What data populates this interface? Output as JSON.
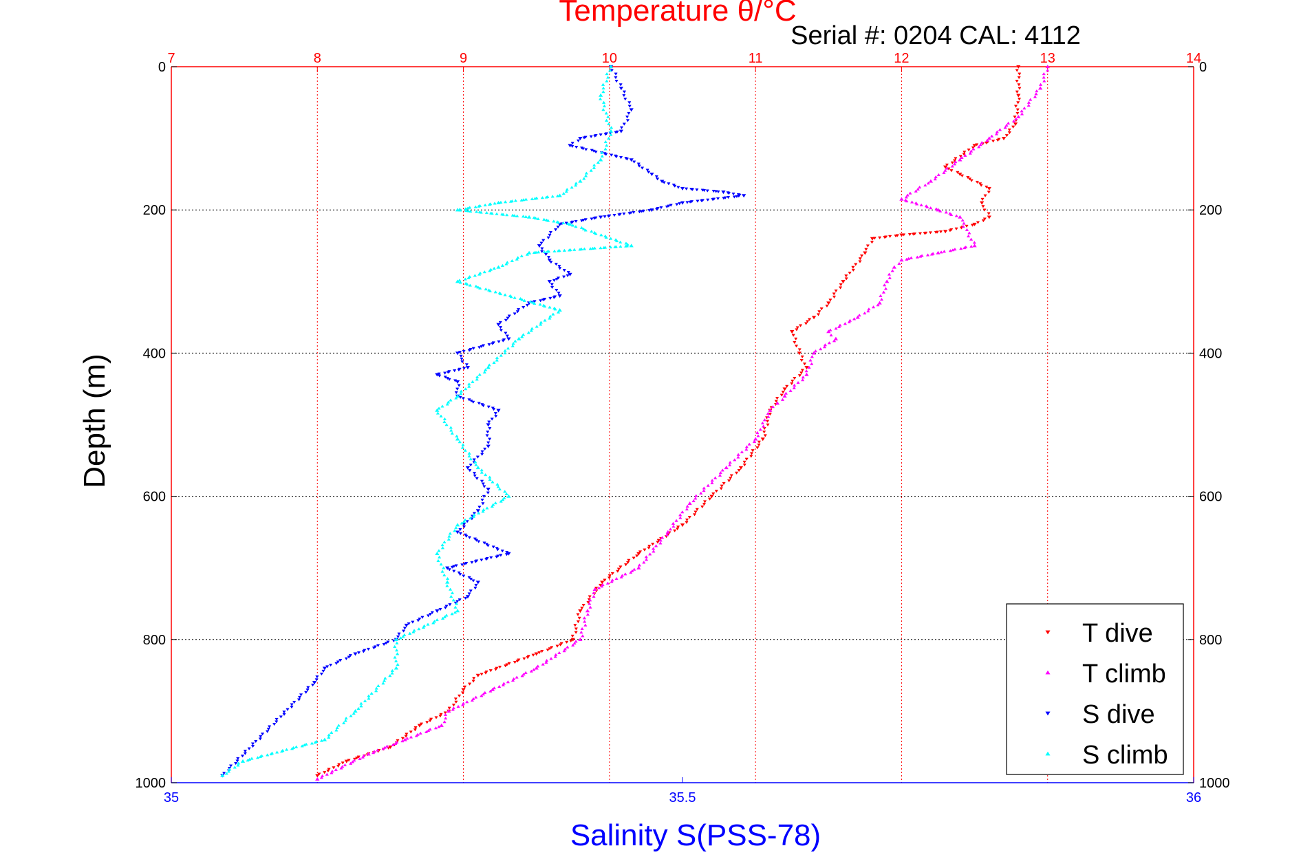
{
  "chart_data": {
    "type": "scatter",
    "title": "Temperature θ/°C",
    "subtitle": "Serial #: 0204  CAL: 4112",
    "ylabel": "Depth (m)",
    "xlabel": "Salinity S(PSS-78)",
    "grid": true,
    "legend_position": "bottom-right",
    "y_axis": {
      "lim": [
        0,
        1000
      ],
      "reversed": true,
      "ticks": [
        0,
        200,
        400,
        600,
        800,
        1000
      ]
    },
    "x_top": {
      "label": "Temperature θ/°C",
      "lim": [
        7,
        14
      ],
      "ticks": [
        7,
        8,
        9,
        10,
        11,
        12,
        13,
        14
      ],
      "color": "#ff0000"
    },
    "x_bottom": {
      "label": "Salinity S(PSS-78)",
      "lim": [
        35,
        36
      ],
      "ticks": [
        35,
        35.5,
        36
      ],
      "color": "#0000ff"
    },
    "series": [
      {
        "name": "T dive",
        "axis": "top",
        "color": "#ff0000",
        "marker": "triangle-down",
        "x": [
          12.8,
          12.8,
          12.78,
          12.7,
          12.5,
          12.3,
          12.4,
          12.6,
          12.55,
          12.6,
          12.5,
          12.3,
          12.0,
          11.8,
          11.75,
          11.6,
          11.5,
          11.4,
          11.25,
          11.3,
          11.35,
          11.2,
          11.1,
          11.05,
          10.9,
          10.7,
          10.5,
          10.2,
          9.95,
          9.8,
          9.75,
          9.5,
          9.1,
          9.0,
          8.9,
          8.7,
          8.5,
          8.2,
          8.0
        ],
        "y": [
          0,
          40,
          80,
          100,
          110,
          140,
          150,
          170,
          190,
          210,
          220,
          230,
          235,
          240,
          260,
          300,
          330,
          350,
          370,
          400,
          420,
          450,
          480,
          520,
          560,
          600,
          640,
          680,
          720,
          760,
          800,
          820,
          850,
          870,
          900,
          920,
          950,
          970,
          990
        ]
      },
      {
        "name": "T climb",
        "axis": "top",
        "color": "#ff00ff",
        "marker": "triangle-up",
        "x": [
          13.0,
          12.95,
          12.8,
          12.6,
          12.4,
          12.2,
          12.0,
          12.25,
          12.4,
          12.5,
          12.25,
          12.0,
          11.95,
          11.9,
          11.85,
          11.7,
          11.5,
          11.55,
          11.4,
          11.35,
          11.2,
          11.15,
          11.1,
          11.0,
          10.8,
          10.55,
          10.4,
          10.2,
          9.9,
          9.85,
          9.8,
          9.5,
          9.2,
          8.9,
          8.85,
          8.6,
          8.35,
          8.0
        ],
        "y": [
          0,
          30,
          70,
          100,
          130,
          160,
          185,
          200,
          210,
          250,
          260,
          270,
          280,
          300,
          330,
          350,
          370,
          380,
          400,
          430,
          460,
          470,
          480,
          520,
          560,
          610,
          650,
          700,
          730,
          760,
          800,
          840,
          870,
          900,
          920,
          940,
          960,
          995
        ]
      },
      {
        "name": "S dive",
        "axis": "bottom",
        "color": "#0000ff",
        "marker": "triangle-down",
        "x": [
          35.43,
          35.44,
          35.45,
          35.44,
          35.4,
          35.39,
          35.45,
          35.47,
          35.48,
          35.5,
          35.54,
          35.56,
          35.5,
          35.47,
          35.42,
          35.38,
          35.36,
          35.37,
          35.39,
          35.37,
          35.38,
          35.35,
          35.32,
          35.33,
          35.28,
          35.29,
          35.26,
          35.28,
          35.28,
          35.32,
          35.31,
          35.31,
          35.29,
          35.31,
          35.3,
          35.28,
          35.33,
          35.27,
          35.3,
          35.29,
          35.26,
          35.23,
          35.22,
          35.18,
          35.15,
          35.14,
          35.05
        ],
        "y": [
          0,
          30,
          60,
          90,
          100,
          110,
          130,
          150,
          160,
          170,
          175,
          180,
          190,
          200,
          210,
          220,
          250,
          270,
          290,
          300,
          320,
          330,
          360,
          380,
          400,
          420,
          430,
          440,
          460,
          480,
          500,
          530,
          560,
          590,
          620,
          650,
          680,
          700,
          720,
          740,
          760,
          780,
          800,
          820,
          840,
          860,
          990
        ]
      },
      {
        "name": "S climb",
        "axis": "bottom",
        "color": "#00ffff",
        "marker": "triangle-up",
        "x": [
          35.43,
          35.42,
          35.43,
          35.42,
          35.4,
          35.38,
          35.32,
          35.28,
          35.35,
          35.39,
          35.45,
          35.35,
          35.32,
          35.28,
          35.38,
          35.34,
          35.31,
          35.28,
          35.26,
          35.28,
          35.3,
          35.33,
          35.28,
          35.26,
          35.27,
          35.28,
          35.22,
          35.22,
          35.18,
          35.15,
          35.07,
          35.05
        ],
        "y": [
          0,
          40,
          90,
          130,
          160,
          180,
          190,
          200,
          210,
          220,
          250,
          260,
          280,
          300,
          340,
          380,
          420,
          460,
          480,
          520,
          560,
          600,
          640,
          680,
          720,
          760,
          800,
          840,
          900,
          940,
          970,
          990
        ]
      }
    ]
  }
}
